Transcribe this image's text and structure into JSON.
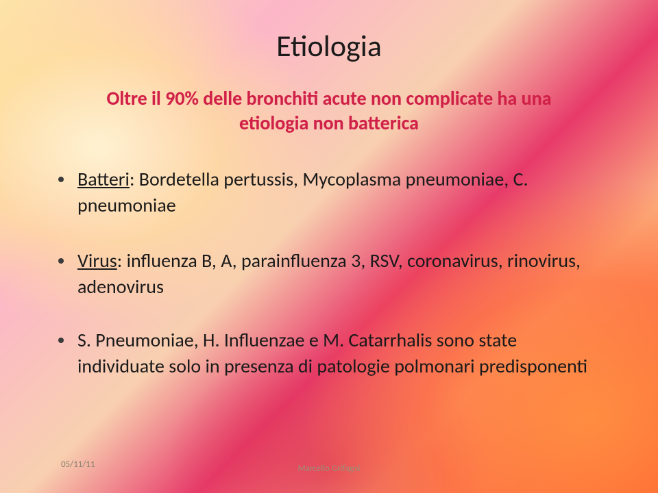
{
  "title": "Etiologia",
  "subtitle": "Oltre il 90% delle bronchiti acute non complicate ha una etiologia non batterica",
  "bullets": [
    {
      "lead": "Batteri",
      "rest": ": Bordetella pertussis, Mycoplasma pneumoniae, C. pneumoniae"
    },
    {
      "lead": "Virus",
      "rest": ": influenza B, A, parainfluenza 3, RSV, coronavirus, rinovirus, adenovirus"
    },
    {
      "lead": "",
      "rest": "S. Pneumoniae, H. Influenzae e M. Catarrhalis sono state individuate solo in presenza di patologie polmonari predisponenti"
    }
  ],
  "footer": {
    "date": "05/11/11",
    "author": "Marcello Grifagni"
  },
  "style": {
    "title_fontsize": 44,
    "subtitle_fontsize": 28,
    "body_fontsize": 28,
    "footer_fontsize": 13,
    "title_color": "#1a1a1a",
    "subtitle_color": "#d02048",
    "body_color": "#1a1a1a",
    "footer_color": "#8a8270",
    "bullet_color": "#3a3a3a",
    "background_gradient_stops": [
      "#fde4a8",
      "#fcb6c8",
      "#f8d0b0",
      "#e73a6a",
      "#fcb080",
      "#ff7038"
    ]
  }
}
